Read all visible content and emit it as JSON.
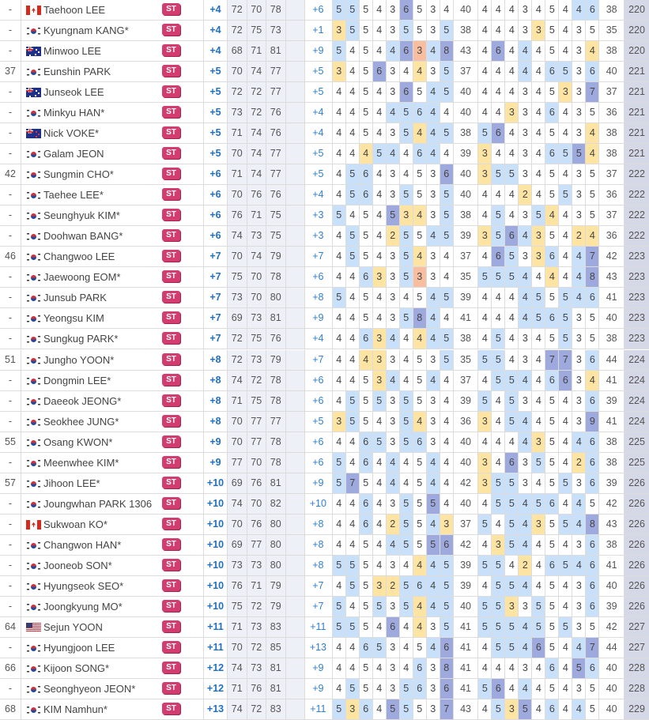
{
  "badge_label": "ST",
  "colors": {
    "bogey": "#c9e0fb",
    "double_bogey_or_worse": "#9ea9dd",
    "birdie": "#fde4a3",
    "eagle": "#f8be9f",
    "to_par_text": "#1f6fc4",
    "badge": "#d23c6e"
  },
  "rows": [
    {
      "rank": "-",
      "country": "CA",
      "name": "Taehoon LEE",
      "to_par": "+4",
      "r1": "72",
      "r2": "70",
      "r3": "78",
      "r4": "",
      "today": "+6",
      "front": [
        5,
        5,
        5,
        4,
        3,
        6,
        5,
        3,
        4
      ],
      "out": "40",
      "back": [
        4,
        4,
        4,
        3,
        4,
        5,
        4,
        4,
        6
      ],
      "in": "38",
      "total": "220"
    },
    {
      "rank": "-",
      "country": "KR",
      "name": "Kyungnam KANG*",
      "to_par": "+4",
      "r1": "72",
      "r2": "75",
      "r3": "73",
      "r4": "",
      "today": "+1",
      "front": [
        3,
        5,
        5,
        4,
        3,
        5,
        5,
        3,
        5
      ],
      "out": "38",
      "back": [
        4,
        4,
        4,
        3,
        3,
        5,
        4,
        3,
        5
      ],
      "in": "35",
      "total": "220"
    },
    {
      "rank": "-",
      "country": "AU",
      "name": "Minwoo LEE",
      "to_par": "+4",
      "r1": "68",
      "r2": "71",
      "r3": "81",
      "r4": "",
      "today": "+9",
      "front": [
        5,
        4,
        5,
        4,
        4,
        6,
        3,
        4,
        8
      ],
      "out": "43",
      "back": [
        4,
        6,
        4,
        4,
        4,
        5,
        4,
        3,
        4
      ],
      "in": "38",
      "total": "220"
    },
    {
      "rank": "37",
      "country": "KR",
      "name": "Eunshin PARK",
      "to_par": "+5",
      "r1": "70",
      "r2": "74",
      "r3": "77",
      "r4": "",
      "today": "+5",
      "front": [
        3,
        4,
        5,
        6,
        3,
        4,
        4,
        3,
        5
      ],
      "out": "37",
      "back": [
        4,
        4,
        4,
        4,
        4,
        6,
        5,
        3,
        6
      ],
      "in": "40",
      "total": "221"
    },
    {
      "rank": "-",
      "country": "AU",
      "name": "Junseok LEE",
      "to_par": "+5",
      "r1": "72",
      "r2": "72",
      "r3": "77",
      "r4": "",
      "today": "+5",
      "front": [
        4,
        4,
        5,
        4,
        3,
        6,
        5,
        4,
        5
      ],
      "out": "40",
      "back": [
        4,
        4,
        4,
        3,
        4,
        5,
        3,
        3,
        7
      ],
      "in": "37",
      "total": "221"
    },
    {
      "rank": "-",
      "country": "KR",
      "name": "Minkyu HAN*",
      "to_par": "+5",
      "r1": "73",
      "r2": "72",
      "r3": "76",
      "r4": "",
      "today": "+4",
      "front": [
        4,
        4,
        5,
        4,
        4,
        5,
        6,
        4,
        4
      ],
      "out": "40",
      "back": [
        4,
        4,
        3,
        3,
        4,
        6,
        4,
        3,
        5
      ],
      "in": "36",
      "total": "221"
    },
    {
      "rank": "-",
      "country": "NZ",
      "name": "Nick VOKE*",
      "to_par": "+5",
      "r1": "71",
      "r2": "74",
      "r3": "76",
      "r4": "",
      "today": "+4",
      "front": [
        4,
        4,
        5,
        4,
        3,
        5,
        4,
        4,
        5
      ],
      "out": "38",
      "back": [
        5,
        6,
        4,
        3,
        4,
        5,
        4,
        3,
        4
      ],
      "in": "38",
      "total": "221"
    },
    {
      "rank": "-",
      "country": "KR",
      "name": "Galam JEON",
      "to_par": "+5",
      "r1": "70",
      "r2": "74",
      "r3": "77",
      "r4": "",
      "today": "+5",
      "front": [
        4,
        4,
        4,
        5,
        4,
        4,
        6,
        4,
        4
      ],
      "out": "39",
      "back": [
        3,
        4,
        4,
        3,
        4,
        6,
        5,
        5,
        4
      ],
      "in": "38",
      "total": "221"
    },
    {
      "rank": "42",
      "country": "KR",
      "name": "Sungmin CHO*",
      "to_par": "+6",
      "r1": "71",
      "r2": "74",
      "r3": "77",
      "r4": "",
      "today": "+5",
      "front": [
        4,
        5,
        6,
        4,
        3,
        4,
        5,
        3,
        6
      ],
      "out": "40",
      "back": [
        3,
        5,
        5,
        3,
        4,
        5,
        4,
        3,
        5
      ],
      "in": "37",
      "total": "222"
    },
    {
      "rank": "-",
      "country": "KR",
      "name": "Taehee LEE*",
      "to_par": "+6",
      "r1": "70",
      "r2": "76",
      "r3": "76",
      "r4": "",
      "today": "+4",
      "front": [
        4,
        5,
        6,
        4,
        3,
        5,
        5,
        3,
        5
      ],
      "out": "40",
      "back": [
        4,
        4,
        4,
        2,
        4,
        5,
        5,
        3,
        5
      ],
      "in": "36",
      "total": "222"
    },
    {
      "rank": "-",
      "country": "KR",
      "name": "Seunghyuk KIM*",
      "to_par": "+6",
      "r1": "76",
      "r2": "71",
      "r3": "75",
      "r4": "",
      "today": "+3",
      "front": [
        5,
        4,
        5,
        4,
        5,
        3,
        4,
        3,
        5
      ],
      "out": "38",
      "back": [
        4,
        5,
        4,
        3,
        5,
        4,
        4,
        3,
        5
      ],
      "in": "37",
      "total": "222"
    },
    {
      "rank": "-",
      "country": "KR",
      "name": "Doohwan BANG*",
      "to_par": "+6",
      "r1": "74",
      "r2": "73",
      "r3": "75",
      "r4": "",
      "today": "+3",
      "front": [
        4,
        5,
        5,
        4,
        2,
        5,
        5,
        4,
        5
      ],
      "out": "39",
      "back": [
        3,
        5,
        6,
        4,
        3,
        5,
        4,
        2,
        4
      ],
      "in": "36",
      "total": "222"
    },
    {
      "rank": "46",
      "country": "KR",
      "name": "Changwoo LEE",
      "to_par": "+7",
      "r1": "70",
      "r2": "74",
      "r3": "79",
      "r4": "",
      "today": "+7",
      "front": [
        4,
        5,
        5,
        4,
        3,
        5,
        4,
        3,
        4
      ],
      "out": "37",
      "back": [
        4,
        6,
        5,
        3,
        3,
        6,
        4,
        4,
        7
      ],
      "in": "42",
      "total": "223"
    },
    {
      "rank": "-",
      "country": "KR",
      "name": "Jaewoong EOM*",
      "to_par": "+7",
      "r1": "75",
      "r2": "70",
      "r3": "78",
      "r4": "",
      "today": "+6",
      "front": [
        4,
        4,
        6,
        3,
        3,
        5,
        3,
        3,
        4
      ],
      "out": "35",
      "back": [
        5,
        5,
        5,
        4,
        4,
        4,
        4,
        4,
        8
      ],
      "in": "43",
      "total": "223"
    },
    {
      "rank": "-",
      "country": "KR",
      "name": "Junsub PARK",
      "to_par": "+7",
      "r1": "73",
      "r2": "70",
      "r3": "80",
      "r4": "",
      "today": "+8",
      "front": [
        5,
        4,
        5,
        4,
        3,
        4,
        5,
        4,
        5
      ],
      "out": "39",
      "back": [
        4,
        4,
        4,
        4,
        5,
        5,
        5,
        4,
        6
      ],
      "in": "41",
      "total": "223"
    },
    {
      "rank": "-",
      "country": "KR",
      "name": "Yeongsu KIM",
      "to_par": "+7",
      "r1": "69",
      "r2": "73",
      "r3": "81",
      "r4": "",
      "today": "+9",
      "front": [
        4,
        4,
        5,
        4,
        3,
        5,
        8,
        4,
        4
      ],
      "out": "41",
      "back": [
        4,
        4,
        4,
        4,
        5,
        6,
        5,
        3,
        5
      ],
      "in": "40",
      "total": "223"
    },
    {
      "rank": "-",
      "country": "KR",
      "name": "Sungkug PARK*",
      "to_par": "+7",
      "r1": "72",
      "r2": "75",
      "r3": "76",
      "r4": "",
      "today": "+4",
      "front": [
        4,
        4,
        6,
        3,
        4,
        4,
        4,
        4,
        5
      ],
      "out": "38",
      "back": [
        4,
        5,
        4,
        3,
        4,
        5,
        5,
        3,
        5
      ],
      "in": "38",
      "total": "223"
    },
    {
      "rank": "51",
      "country": "KR",
      "name": "Jungho YOON*",
      "to_par": "+8",
      "r1": "72",
      "r2": "73",
      "r3": "79",
      "r4": "",
      "today": "+7",
      "front": [
        4,
        4,
        4,
        3,
        3,
        4,
        5,
        3,
        5
      ],
      "out": "35",
      "back": [
        5,
        5,
        4,
        3,
        4,
        7,
        7,
        3,
        6
      ],
      "in": "44",
      "total": "224"
    },
    {
      "rank": "-",
      "country": "KR",
      "name": "Dongmin LEE*",
      "to_par": "+8",
      "r1": "74",
      "r2": "72",
      "r3": "78",
      "r4": "",
      "today": "+6",
      "front": [
        4,
        4,
        5,
        3,
        4,
        4,
        5,
        4,
        4
      ],
      "out": "37",
      "back": [
        4,
        5,
        5,
        4,
        4,
        6,
        6,
        3,
        4
      ],
      "in": "41",
      "total": "224"
    },
    {
      "rank": "-",
      "country": "KR",
      "name": "Daeeok JEONG*",
      "to_par": "+8",
      "r1": "71",
      "r2": "75",
      "r3": "78",
      "r4": "",
      "today": "+6",
      "front": [
        4,
        5,
        5,
        5,
        3,
        5,
        5,
        3,
        4
      ],
      "out": "39",
      "back": [
        5,
        4,
        5,
        3,
        4,
        5,
        4,
        3,
        6
      ],
      "in": "39",
      "total": "224"
    },
    {
      "rank": "-",
      "country": "KR",
      "name": "Seokhee JUNG*",
      "to_par": "+8",
      "r1": "70",
      "r2": "77",
      "r3": "77",
      "r4": "",
      "today": "+5",
      "front": [
        3,
        5,
        5,
        4,
        3,
        5,
        4,
        3,
        4
      ],
      "out": "36",
      "back": [
        3,
        4,
        5,
        4,
        4,
        5,
        4,
        3,
        9
      ],
      "in": "41",
      "total": "224"
    },
    {
      "rank": "55",
      "country": "KR",
      "name": "Osang KWON*",
      "to_par": "+9",
      "r1": "70",
      "r2": "77",
      "r3": "78",
      "r4": "",
      "today": "+6",
      "front": [
        4,
        4,
        6,
        5,
        3,
        5,
        6,
        3,
        4
      ],
      "out": "40",
      "back": [
        4,
        4,
        4,
        4,
        3,
        5,
        4,
        4,
        6
      ],
      "in": "38",
      "total": "225"
    },
    {
      "rank": "-",
      "country": "KR",
      "name": "Meenwhee KIM*",
      "to_par": "+9",
      "r1": "77",
      "r2": "70",
      "r3": "78",
      "r4": "",
      "today": "+6",
      "front": [
        5,
        4,
        6,
        4,
        4,
        4,
        5,
        4,
        4
      ],
      "out": "40",
      "back": [
        3,
        4,
        6,
        3,
        5,
        5,
        4,
        2,
        6
      ],
      "in": "38",
      "total": "225"
    },
    {
      "rank": "57",
      "country": "KR",
      "name": "Jihoon LEE*",
      "to_par": "+10",
      "r1": "69",
      "r2": "76",
      "r3": "81",
      "r4": "",
      "today": "+9",
      "front": [
        5,
        7,
        5,
        4,
        4,
        4,
        5,
        4,
        4
      ],
      "out": "42",
      "back": [
        3,
        5,
        5,
        3,
        4,
        5,
        5,
        3,
        6
      ],
      "in": "39",
      "total": "226"
    },
    {
      "rank": "-",
      "country": "KR",
      "name": "Joungwhan PARK 1306",
      "to_par": "+10",
      "r1": "74",
      "r2": "70",
      "r3": "82",
      "r4": "",
      "today": "+10",
      "front": [
        4,
        4,
        6,
        4,
        3,
        5,
        5,
        5,
        4
      ],
      "out": "40",
      "back": [
        4,
        5,
        5,
        4,
        5,
        6,
        4,
        4,
        5
      ],
      "in": "42",
      "total": "226"
    },
    {
      "rank": "-",
      "country": "CA",
      "name": "Sukwoan KO*",
      "to_par": "+10",
      "r1": "70",
      "r2": "76",
      "r3": "80",
      "r4": "",
      "today": "+8",
      "front": [
        4,
        4,
        6,
        4,
        2,
        5,
        5,
        4,
        3
      ],
      "out": "37",
      "back": [
        5,
        4,
        5,
        4,
        3,
        5,
        5,
        4,
        8
      ],
      "in": "43",
      "total": "226"
    },
    {
      "rank": "-",
      "country": "KR",
      "name": "Changwon HAN*",
      "to_par": "+10",
      "r1": "69",
      "r2": "77",
      "r3": "80",
      "r4": "",
      "today": "+8",
      "front": [
        4,
        4,
        5,
        4,
        4,
        5,
        5,
        5,
        6
      ],
      "out": "42",
      "back": [
        4,
        3,
        5,
        4,
        4,
        5,
        4,
        3,
        6
      ],
      "in": "38",
      "total": "226"
    },
    {
      "rank": "-",
      "country": "KR",
      "name": "Jooneob SON*",
      "to_par": "+10",
      "r1": "73",
      "r2": "73",
      "r3": "80",
      "r4": "",
      "today": "+8",
      "front": [
        5,
        5,
        5,
        4,
        3,
        4,
        4,
        4,
        5
      ],
      "out": "39",
      "back": [
        5,
        5,
        4,
        2,
        4,
        6,
        5,
        4,
        6
      ],
      "in": "41",
      "total": "226"
    },
    {
      "rank": "-",
      "country": "KR",
      "name": "Hyungseok SEO*",
      "to_par": "+10",
      "r1": "76",
      "r2": "71",
      "r3": "79",
      "r4": "",
      "today": "+7",
      "front": [
        4,
        5,
        5,
        3,
        2,
        5,
        6,
        4,
        5
      ],
      "out": "39",
      "back": [
        4,
        5,
        5,
        4,
        4,
        5,
        4,
        3,
        6
      ],
      "in": "40",
      "total": "226"
    },
    {
      "rank": "-",
      "country": "KR",
      "name": "Joongkyung MO*",
      "to_par": "+10",
      "r1": "75",
      "r2": "72",
      "r3": "79",
      "r4": "",
      "today": "+7",
      "front": [
        5,
        4,
        5,
        5,
        3,
        5,
        4,
        4,
        5
      ],
      "out": "40",
      "back": [
        5,
        5,
        3,
        3,
        5,
        5,
        4,
        3,
        6
      ],
      "in": "39",
      "total": "226"
    },
    {
      "rank": "64",
      "country": "US",
      "name": "Sejun YOON",
      "to_par": "+11",
      "r1": "71",
      "r2": "73",
      "r3": "83",
      "r4": "",
      "today": "+11",
      "front": [
        5,
        5,
        5,
        4,
        6,
        4,
        4,
        3,
        5
      ],
      "out": "41",
      "back": [
        5,
        5,
        5,
        4,
        5,
        5,
        5,
        3,
        5
      ],
      "in": "42",
      "total": "227"
    },
    {
      "rank": "-",
      "country": "KR",
      "name": "Hyungjoon LEE",
      "to_par": "+11",
      "r1": "70",
      "r2": "72",
      "r3": "85",
      "r4": "",
      "today": "+13",
      "front": [
        4,
        4,
        6,
        5,
        3,
        4,
        5,
        4,
        6
      ],
      "out": "41",
      "back": [
        4,
        5,
        5,
        4,
        6,
        5,
        4,
        4,
        7
      ],
      "in": "44",
      "total": "227"
    },
    {
      "rank": "66",
      "country": "KR",
      "name": "Kijoon SONG*",
      "to_par": "+12",
      "r1": "74",
      "r2": "73",
      "r3": "81",
      "r4": "",
      "today": "+9",
      "front": [
        4,
        4,
        5,
        4,
        3,
        4,
        6,
        3,
        8
      ],
      "out": "41",
      "back": [
        4,
        4,
        4,
        3,
        4,
        6,
        4,
        5,
        6
      ],
      "in": "40",
      "total": "228"
    },
    {
      "rank": "-",
      "country": "KR",
      "name": "Seonghyeon JEON*",
      "to_par": "+12",
      "r1": "71",
      "r2": "76",
      "r3": "81",
      "r4": "",
      "today": "+9",
      "front": [
        4,
        5,
        5,
        4,
        3,
        5,
        6,
        3,
        6
      ],
      "out": "41",
      "back": [
        5,
        6,
        4,
        4,
        4,
        5,
        4,
        3,
        5
      ],
      "in": "40",
      "total": "228"
    },
    {
      "rank": "68",
      "country": "KR",
      "name": "KIM Namhun*",
      "to_par": "+13",
      "r1": "74",
      "r2": "72",
      "r3": "83",
      "r4": "",
      "today": "+11",
      "front": [
        5,
        3,
        6,
        4,
        5,
        5,
        5,
        3,
        7
      ],
      "out": "43",
      "back": [
        4,
        5,
        3,
        5,
        4,
        6,
        4,
        4,
        5
      ],
      "in": "40",
      "total": "229"
    }
  ]
}
